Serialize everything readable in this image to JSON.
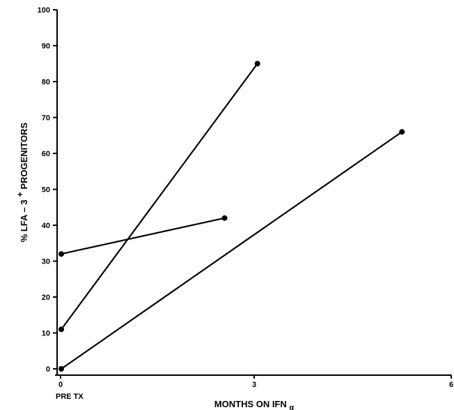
{
  "chart_data": {
    "type": "line",
    "title": "",
    "xlabel": "MONTHS ON IFN",
    "xlabel_sub": "α",
    "ylabel": "% LFA – 3",
    "ylabel_sup": "+",
    "ylabel_suffix": " PROGENITORS",
    "xlim": [
      0,
      6
    ],
    "ylim": [
      0,
      100
    ],
    "x_ticks": [
      0,
      3,
      6
    ],
    "x_tick_labels": [
      "0",
      "3",
      "6"
    ],
    "x_extra_label": "PRE TX",
    "y_ticks": [
      0,
      10,
      20,
      30,
      40,
      50,
      60,
      70,
      80,
      90,
      100
    ],
    "y_tick_labels": [
      "0",
      "10",
      "20",
      "30",
      "40",
      "50",
      "60",
      "70",
      "80",
      "90",
      "100"
    ],
    "grid": false,
    "series": [
      {
        "x": [
          0,
          3.05
        ],
        "y": [
          11,
          85
        ]
      },
      {
        "x": [
          0,
          2.55
        ],
        "y": [
          32,
          42
        ]
      },
      {
        "x": [
          0,
          5.25
        ],
        "y": [
          0,
          66
        ]
      }
    ]
  }
}
